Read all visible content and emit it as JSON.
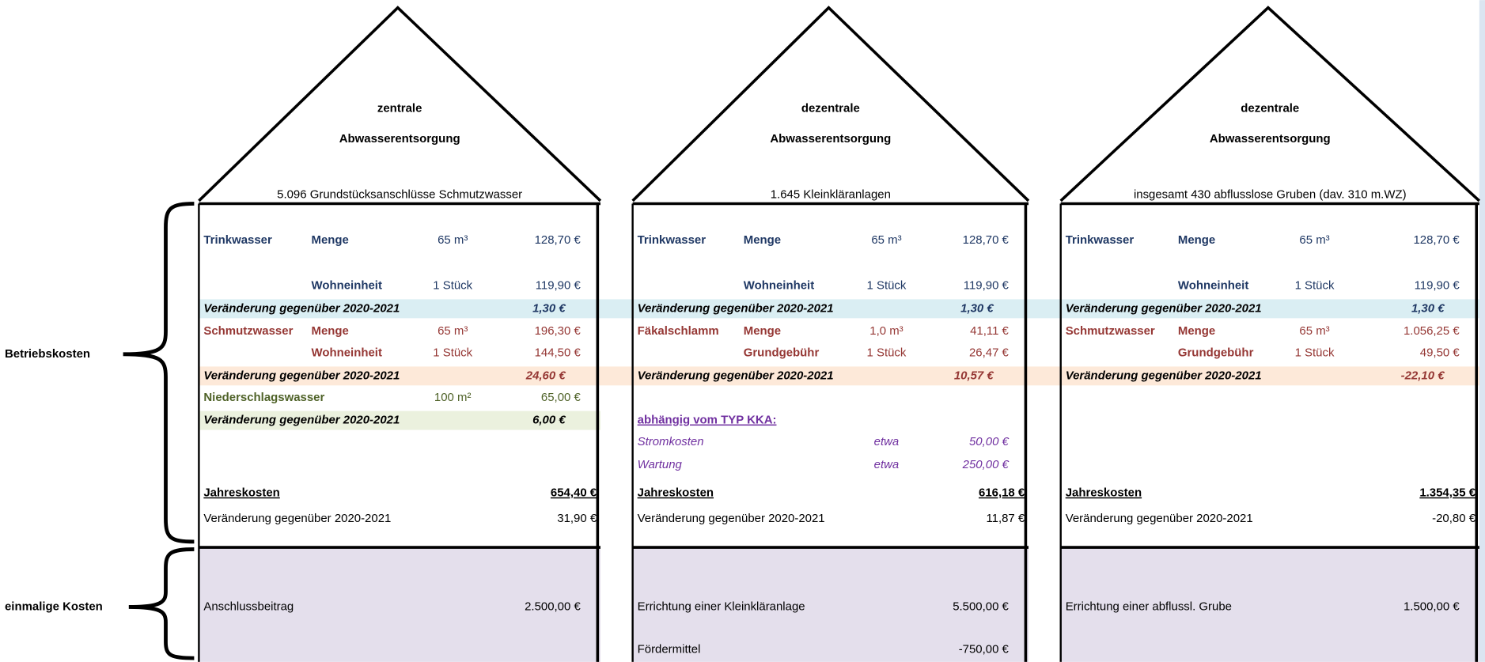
{
  "side_labels": [
    "Betriebskosten",
    "einmalige Kosten"
  ],
  "houses": [
    {
      "title": [
        "zentrale",
        "Abwasserentsorgung"
      ],
      "subtitle": "5.096 Grundstücksanschlüsse Schmutzwasser",
      "rows": [
        {
          "group": "Trinkwasser",
          "item": "Menge",
          "quantity": "65 m³",
          "amount": "128,70 €",
          "color": "#1f3864"
        },
        {
          "item": "Wohneinheit",
          "quantity": "1 Stück",
          "amount": "119,90 €",
          "color": "#1f3864"
        },
        {
          "note": "Veränderung gegenüber 2020-2021",
          "amount": "1,30 €",
          "color": "#1f3864",
          "band": "#daeef3"
        },
        {
          "group": "Schmutzwasser",
          "item": "Menge",
          "quantity": "65 m³",
          "amount": "196,30 €",
          "color": "#953734"
        },
        {
          "item": "Wohneinheit",
          "quantity": "1 Stück",
          "amount": "144,50 €",
          "color": "#953734"
        },
        {
          "note": "Veränderung gegenüber 2020-2021",
          "amount": "24,60 €",
          "color": "#953734",
          "band": "#fde9d9"
        },
        {
          "group": "Niederschlagswasser",
          "quantity": "100 m²",
          "amount": "65,00 €",
          "color": "#4f6228"
        },
        {
          "note": "Veränderung gegenüber 2020-2021",
          "amount": "6,00 €",
          "color": "#000000",
          "band": "#ebf1de"
        }
      ],
      "total": {
        "label": "Jahreskosten",
        "amount": "654,40 €",
        "change_label": "Veränderung gegenüber 2020-2021",
        "change": "31,90 €"
      },
      "once": [
        {
          "label": "Anschlussbeitrag",
          "amount": "2.500,00 €"
        }
      ]
    },
    {
      "title": [
        "dezentrale",
        "Abwasserentsorgung"
      ],
      "subtitle": "1.645 Kleinkläranlagen",
      "rows": [
        {
          "group": "Trinkwasser",
          "item": "Menge",
          "quantity": "65 m³",
          "amount": "128,70 €",
          "color": "#1f3864"
        },
        {
          "item": "Wohneinheit",
          "quantity": "1 Stück",
          "amount": "119,90 €",
          "color": "#1f3864"
        },
        {
          "note": "Veränderung gegenüber 2020-2021",
          "amount": "1,30 €",
          "color": "#1f3864",
          "band": "#daeef3"
        },
        {
          "group": "Fäkalschlamm",
          "item": "Menge",
          "quantity": "1,0 m³",
          "amount": "41,11 €",
          "color": "#953734"
        },
        {
          "item": "Grundgebühr",
          "quantity": "1 Stück",
          "amount": "26,47 €",
          "color": "#953734"
        },
        {
          "note": "Veränderung gegenüber 2020-2021",
          "amount": "10,57 €",
          "color": "#953734",
          "band": "#fde9d9"
        },
        {
          "heading": "abhängig vom TYP KKA:",
          "color": "#7030a0"
        },
        {
          "option": "Stromkosten",
          "quantity": "etwa",
          "amount": "50,00 €",
          "color": "#7030a0"
        },
        {
          "option": "Wartung",
          "quantity": "etwa",
          "amount": "250,00 €",
          "color": "#7030a0"
        }
      ],
      "total": {
        "label": "Jahreskosten",
        "amount": "616,18 €",
        "change_label": "Veränderung gegenüber 2020-2021",
        "change": "11,87 €"
      },
      "once": [
        {
          "label": "Errichtung einer Kleinkläranlage",
          "amount": "5.500,00 €"
        },
        {
          "label": "Fördermittel",
          "amount": "-750,00 €"
        }
      ]
    },
    {
      "title": [
        "dezentrale",
        "Abwasserentsorgung"
      ],
      "subtitle": "insgesamt  430 abflusslose Gruben (dav. 310 m.WZ)",
      "rows": [
        {
          "group": "Trinkwasser",
          "item": "Menge",
          "quantity": "65 m³",
          "amount": "128,70 €",
          "color": "#1f3864"
        },
        {
          "item": "Wohneinheit",
          "quantity": "1 Stück",
          "amount": "119,90 €",
          "color": "#1f3864"
        },
        {
          "note": "Veränderung gegenüber 2020-2021",
          "amount": "1,30 €",
          "color": "#1f3864",
          "band": "#daeef3"
        },
        {
          "group": "Schmutzwasser",
          "item": "Menge",
          "quantity": "65 m³",
          "amount": "1.056,25 €",
          "color": "#953734"
        },
        {
          "item": "Grundgebühr",
          "quantity": "1 Stück",
          "amount": "49,50 €",
          "color": "#953734"
        },
        {
          "note": "Veränderung gegenüber 2020-2021",
          "amount": "-22,10 €",
          "color": "#953734",
          "band": "#fde9d9"
        }
      ],
      "total": {
        "label": "Jahreskosten",
        "amount": "1.354,35 €",
        "change_label": "Veränderung gegenüber 2020-2021",
        "change": "-20,80 €"
      },
      "once": [
        {
          "label": "Errichtung einer abflussl. Grube",
          "amount": "1.500,00 €"
        }
      ]
    }
  ]
}
